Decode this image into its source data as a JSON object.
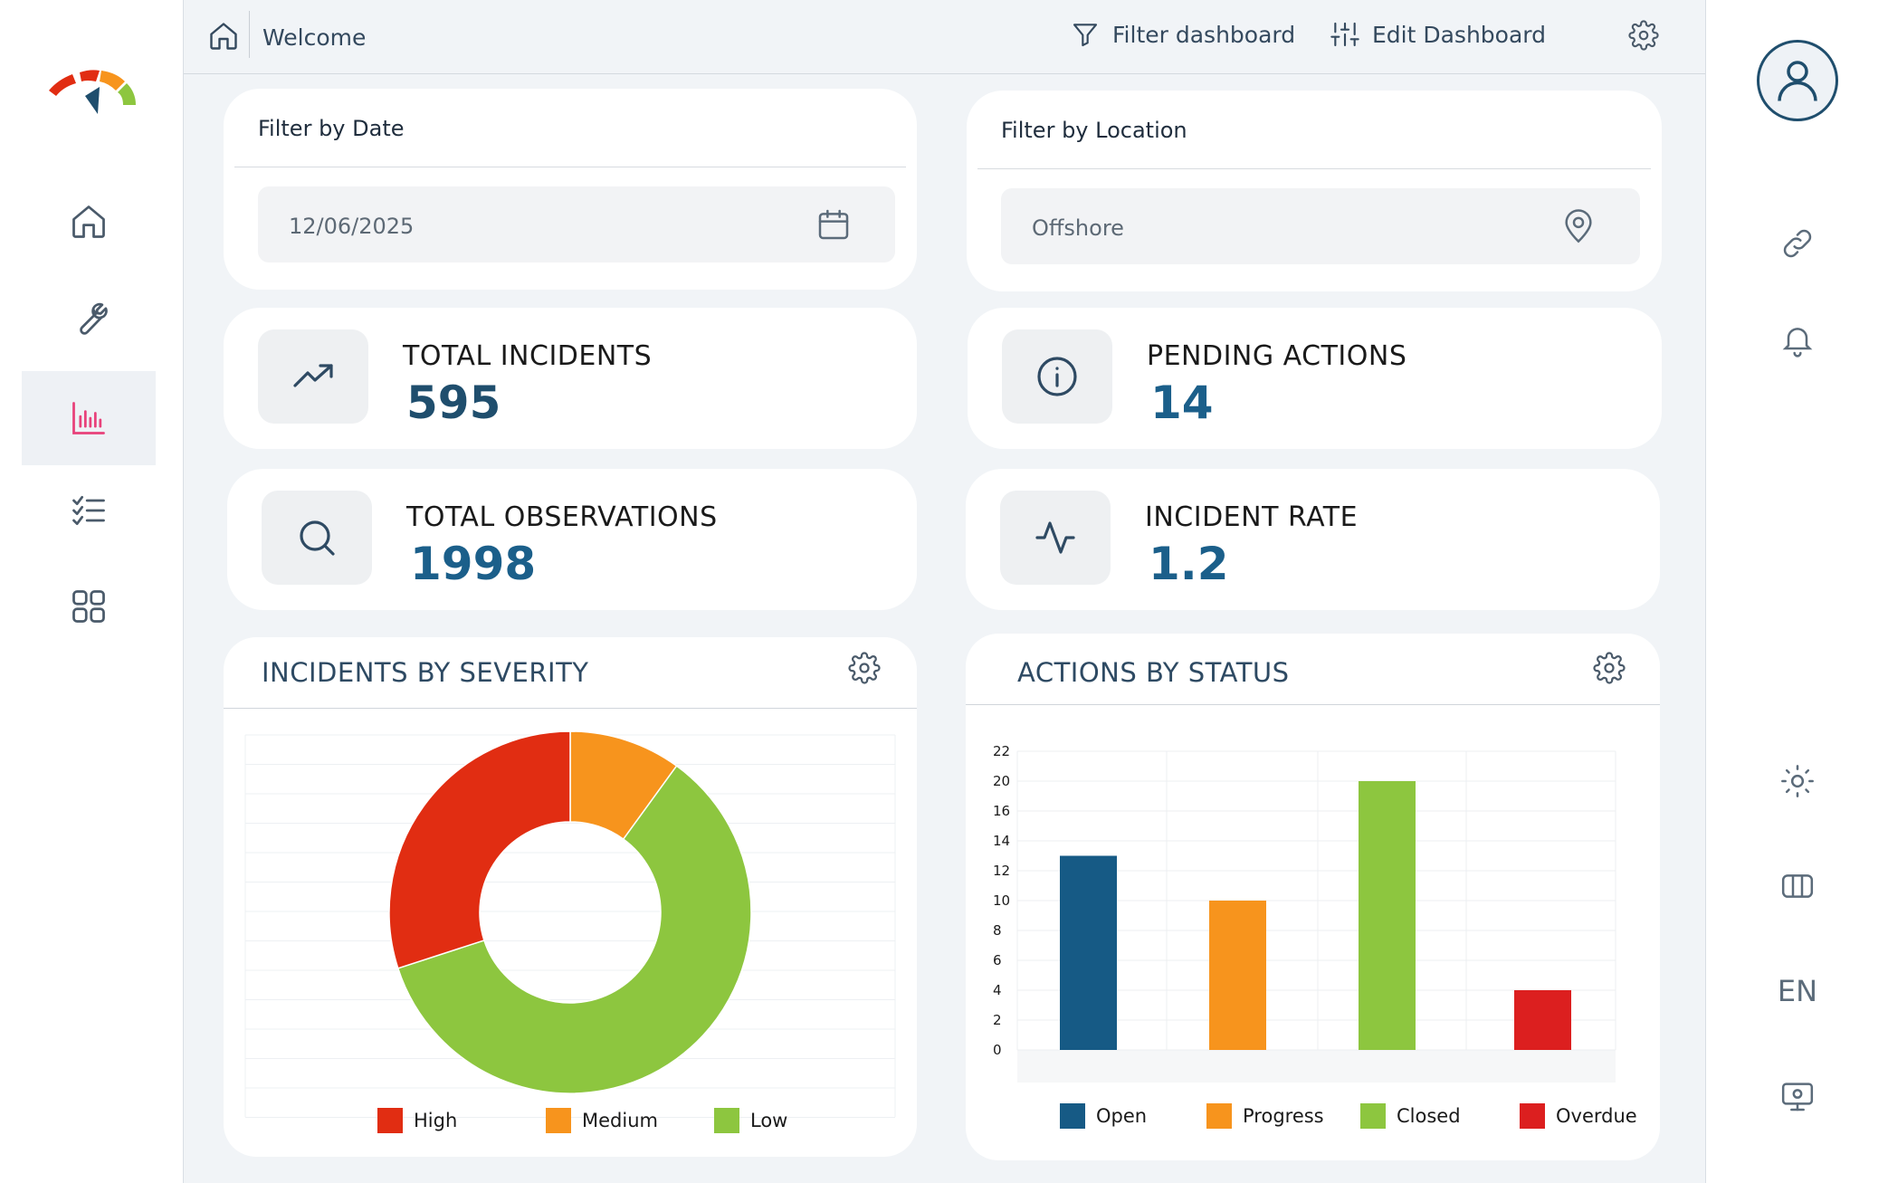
{
  "topbar": {
    "welcome": "Welcome",
    "filter_label": "Filter dashboard",
    "edit_label": "Edit Dashboard"
  },
  "sidebar": {
    "items": [
      {
        "icon": "home-icon"
      },
      {
        "icon": "wrench-icon"
      },
      {
        "icon": "bar-chart-icon",
        "active": true
      },
      {
        "icon": "checklist-icon"
      },
      {
        "icon": "grid-icon"
      }
    ],
    "active_color": "#e8417a"
  },
  "right_sidebar": {
    "language": "EN",
    "icons": [
      "user-avatar-icon",
      "link-icon",
      "bell-icon",
      "sun-icon",
      "columns-icon",
      "monitor-icon"
    ]
  },
  "filters": {
    "date": {
      "title": "Filter by Date",
      "value": "12/06/2025",
      "icon": "calendar-icon"
    },
    "location": {
      "title": "Filter by Location",
      "value": "Offshore",
      "icon": "location-pin-icon"
    }
  },
  "kpis": {
    "total_incidents": {
      "label": "TOTAL INCIDENTS",
      "value": "595",
      "icon": "trend-up-icon"
    },
    "pending_actions": {
      "label": "PENDING ACTIONS",
      "value": "14",
      "icon": "info-icon"
    },
    "total_observations": {
      "label": "TOTAL OBSERVATIONS",
      "value": "1998",
      "icon": "search-icon"
    },
    "incident_rate": {
      "label": "INCIDENT RATE",
      "value": "1.2",
      "icon": "activity-icon"
    }
  },
  "colors": {
    "high": "#e12d12",
    "medium": "#f7941d",
    "low": "#8dc63f",
    "open": "#165a85",
    "progress": "#f7941d",
    "closed": "#8dc63f",
    "overdue": "#dc1f1f",
    "primary": "#1f4e6d"
  },
  "chart_data": [
    {
      "type": "pie",
      "title": "INCIDENTS BY SEVERITY",
      "categories": [
        "High",
        "Medium",
        "Low"
      ],
      "values": [
        30,
        10,
        60
      ],
      "legend": "bottom"
    },
    {
      "type": "bar",
      "title": "ACTIONS BY STATUS",
      "categories": [
        "Open",
        "Progress",
        "Closed",
        "Overdue"
      ],
      "values": [
        13,
        10,
        20,
        4
      ],
      "yticks": [
        "22",
        "20",
        "16",
        "14",
        "12",
        "10",
        "8",
        "6",
        "4",
        "2",
        "0"
      ],
      "legend": "bottom",
      "grid": true
    }
  ]
}
